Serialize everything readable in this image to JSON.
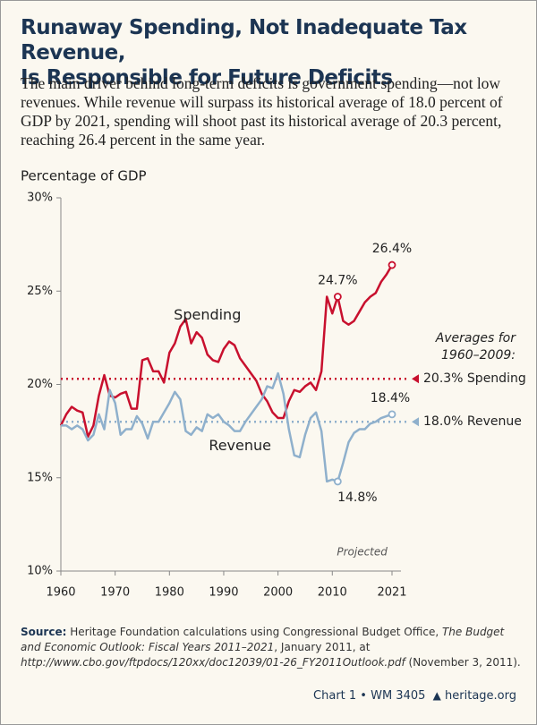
{
  "header": {
    "title_line1": "Runaway Spending, Not Inadequate Tax Revenue,",
    "title_line2": "Is Responsible for Future Deficits",
    "subtitle": "The main driver behind long-term deficits is government spending—not low revenues. While revenue will surpass its historical average of 18.0 percent of GDP by 2021, spending will shoot past its historical average of 20.3 percent, reaching 26.4 percent in the same year."
  },
  "chart_data": {
    "type": "line",
    "ylabel": "Percentage of GDP",
    "x": [
      1960,
      1961,
      1962,
      1963,
      1964,
      1965,
      1966,
      1967,
      1968,
      1969,
      1970,
      1971,
      1972,
      1973,
      1974,
      1975,
      1976,
      1977,
      1978,
      1979,
      1980,
      1981,
      1982,
      1983,
      1984,
      1985,
      1986,
      1987,
      1988,
      1989,
      1990,
      1991,
      1992,
      1993,
      1994,
      1995,
      1996,
      1997,
      1998,
      1999,
      2000,
      2001,
      2002,
      2003,
      2004,
      2005,
      2006,
      2007,
      2008,
      2009,
      2010,
      2011,
      2012,
      2013,
      2014,
      2015,
      2016,
      2017,
      2018,
      2019,
      2020,
      2021
    ],
    "series": [
      {
        "name": "Spending",
        "color": "#c8102e",
        "values": [
          17.8,
          18.4,
          18.8,
          18.6,
          18.5,
          17.2,
          17.8,
          19.4,
          20.5,
          19.4,
          19.3,
          19.5,
          19.6,
          18.7,
          18.7,
          21.3,
          21.4,
          20.7,
          20.7,
          20.1,
          21.7,
          22.2,
          23.1,
          23.5,
          22.2,
          22.8,
          22.5,
          21.6,
          21.3,
          21.2,
          21.9,
          22.3,
          22.1,
          21.4,
          21.0,
          20.6,
          20.2,
          19.5,
          19.1,
          18.5,
          18.2,
          18.2,
          19.1,
          19.7,
          19.6,
          19.9,
          20.1,
          19.7,
          20.7,
          24.7,
          23.8,
          24.7,
          23.4,
          23.2,
          23.4,
          23.9,
          24.4,
          24.7,
          24.9,
          25.5,
          25.9,
          26.4
        ]
      },
      {
        "name": "Revenue",
        "color": "#8fb0cc",
        "values": [
          17.8,
          17.8,
          17.6,
          17.8,
          17.6,
          17.0,
          17.3,
          18.4,
          17.6,
          19.7,
          19.0,
          17.3,
          17.6,
          17.6,
          18.3,
          17.9,
          17.1,
          18.0,
          18.0,
          18.5,
          19.0,
          19.6,
          19.2,
          17.5,
          17.3,
          17.7,
          17.5,
          18.4,
          18.2,
          18.4,
          18.0,
          17.8,
          17.5,
          17.5,
          18.0,
          18.4,
          18.8,
          19.2,
          19.9,
          19.8,
          20.6,
          19.5,
          17.6,
          16.2,
          16.1,
          17.3,
          18.2,
          18.5,
          17.5,
          14.8,
          14.9,
          14.8,
          15.8,
          16.9,
          17.4,
          17.6,
          17.6,
          17.9,
          18.0,
          18.2,
          18.3,
          18.4
        ]
      }
    ],
    "xlim": [
      1960,
      2021
    ],
    "xticks": [
      1960,
      1970,
      1980,
      1990,
      2000,
      2010,
      2021
    ],
    "ylim": [
      10,
      30
    ],
    "yticks": [
      {
        "value": 10,
        "label": "10%"
      },
      {
        "value": 15,
        "label": "15%"
      },
      {
        "value": 20,
        "label": "20%"
      },
      {
        "value": 25,
        "label": "25%"
      },
      {
        "value": 30,
        "label": "30%"
      }
    ],
    "grid": false,
    "annotations": [
      {
        "label": "24.7%",
        "x": 2011,
        "y": 24.7,
        "color": "#c8102e"
      },
      {
        "label": "26.4%",
        "x": 2021,
        "y": 26.4,
        "color": "#c8102e"
      },
      {
        "label": "18.4%",
        "x": 2021,
        "y": 18.4,
        "color": "#8fb0cc"
      },
      {
        "label": "14.8%",
        "x": 2011,
        "y": 14.8,
        "color": "#8fb0cc"
      }
    ],
    "projected_label": "Projected",
    "averages": {
      "title_line1": "Averages for",
      "title_line2": "1960–2009:",
      "items": [
        {
          "value": 20.3,
          "label": "20.3% Spending",
          "color": "#c8102e"
        },
        {
          "value": 18.0,
          "label": "18.0% Revenue",
          "color": "#8fb0cc"
        }
      ]
    }
  },
  "source": {
    "label": "Source:",
    "text1": "Heritage Foundation calculations using Congressional Budget Office,",
    "title": "The Budget and Economic Outlook: Fiscal Years 2011–2021",
    "text2": ", January 2011, at",
    "url": "http://www.cbo.gov/ftpdocs/120xx/doc12039/01-26_FY2011Outlook.pdf",
    "text3": "(November 3, 2011)."
  },
  "footer": {
    "chart": "Chart 1 • WM 3405",
    "site": "heritage.org"
  }
}
